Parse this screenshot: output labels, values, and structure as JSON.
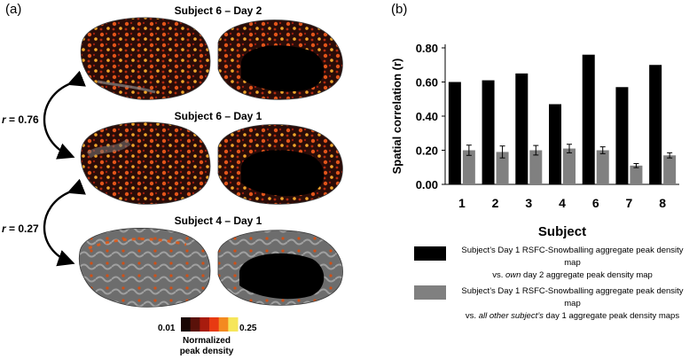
{
  "panel_a": {
    "label": "(a)",
    "brains": [
      {
        "title": "Subject 6 – Day 2"
      },
      {
        "title": "Subject 6 – Day 1"
      },
      {
        "title": "Subject 4 – Day 1"
      }
    ],
    "correlations": [
      {
        "prefix": "r",
        "value": " = 0.76"
      },
      {
        "prefix": "r",
        "value": " = 0.27"
      }
    ],
    "colorbar": {
      "min_label": "0.01",
      "max_label": "0.25",
      "title_line1": "Normalized",
      "title_line2": "peak density",
      "colors": [
        "#1a0604",
        "#5a120a",
        "#a81c0e",
        "#e83a12",
        "#f48a20",
        "#f6e65a"
      ]
    }
  },
  "panel_b": {
    "label": "(b)",
    "legend": [
      {
        "color": "#000000",
        "line1": "Subject’s Day 1 RSFC-Snowballing aggregate peak density map",
        "line2_pre": "vs. ",
        "line2_em": "own",
        "line2_post": " day 2 aggregate peak density map"
      },
      {
        "color": "#808080",
        "line1": "Subject’s Day 1 RSFC-Snowballing aggregate peak density map",
        "line2_pre": "vs. ",
        "line2_em": "all other subject’s",
        "line2_post": " day 1 aggregate peak density maps"
      }
    ]
  },
  "chart_data": {
    "type": "bar",
    "categories": [
      "1",
      "2",
      "3",
      "4",
      "6",
      "7",
      "8"
    ],
    "series": [
      {
        "values": [
          0.6,
          0.61,
          0.65,
          0.47,
          0.76,
          0.57,
          0.7
        ],
        "color": "#000000"
      },
      {
        "values": [
          0.2,
          0.19,
          0.2,
          0.21,
          0.2,
          0.11,
          0.17
        ],
        "errors": [
          0.03,
          0.035,
          0.028,
          0.025,
          0.02,
          0.012,
          0.015
        ],
        "color": "#808080"
      }
    ],
    "xlabel": "Subject",
    "ylabel": "Spatial correlation (r)",
    "ylim": [
      0,
      0.8
    ],
    "yticks": [
      "0.00",
      "0.20",
      "0.40",
      "0.60",
      "0.80"
    ],
    "grid": false
  }
}
